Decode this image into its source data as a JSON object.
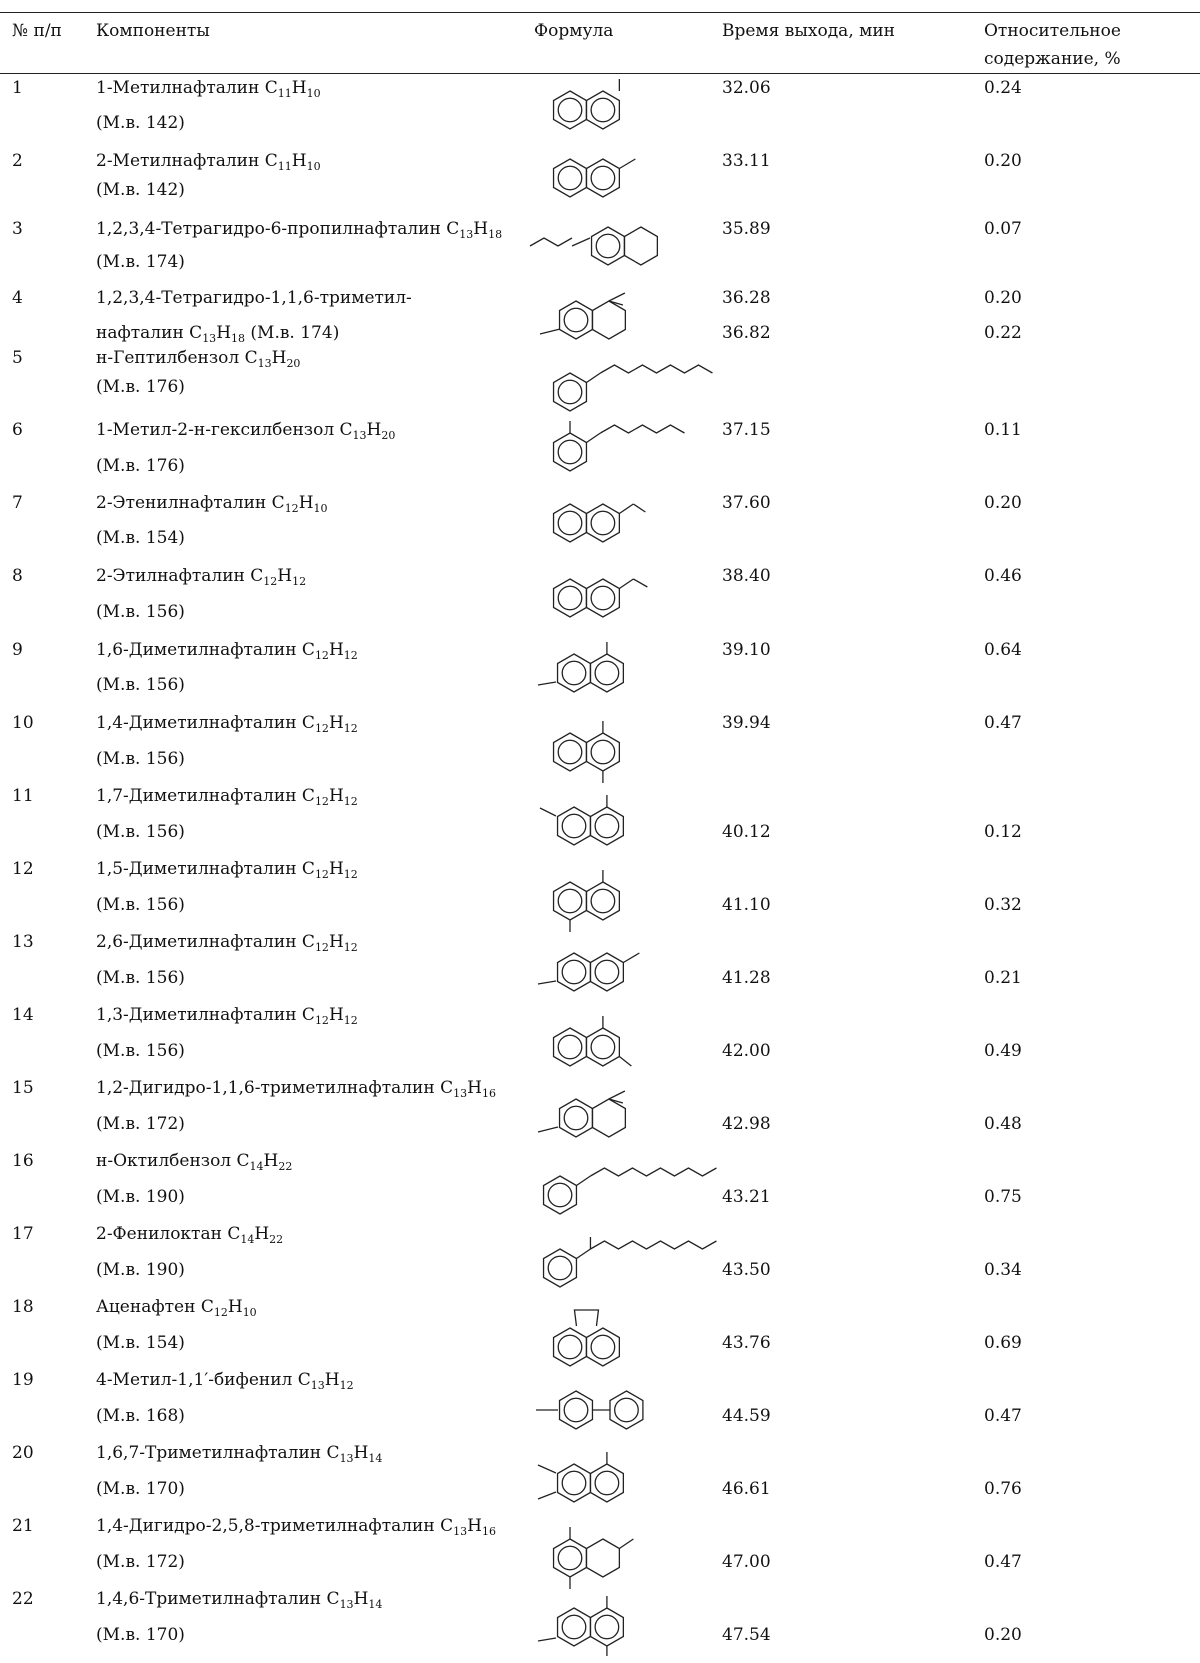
{
  "table": {
    "headers": {
      "num": "№ п/п",
      "component": "Компоненты",
      "formula": "Формула",
      "rt": "Время выхода, мин",
      "rel1": "Относительное",
      "rel2": "содержание, %"
    },
    "rows": [
      {
        "n": "1",
        "name": "1-Метилнафталин C",
        "s1": "11",
        "h": "H",
        "s2": "10",
        "tail": "",
        "mw": "(М.в. 142)",
        "rt": "32.06",
        "pct": "0.24",
        "icon": "1-methylnaphthalene-structure-icon"
      },
      {
        "n": "2",
        "name": "2-Метилнафталин C",
        "s1": "11",
        "h": "H",
        "s2": "10",
        "tail": "",
        "mw": "(М.в. 142)",
        "rt": "33.11",
        "pct": "0.20",
        "icon": "2-methylnaphthalene-structure-icon"
      },
      {
        "n": "3",
        "name": "1,2,3,4-Тетрагидро-6-пропилнафталин C",
        "s1": "13",
        "h": "H",
        "s2": "18",
        "tail": "",
        "mw": "(М.в. 174)",
        "rt": "35.89",
        "pct": "0.07",
        "icon": "propyltetralin-structure-icon"
      },
      {
        "n": "4",
        "name": "1,2,3,4-Тетрагидро-1,1,6-триметил-",
        "s1": "",
        "h": "",
        "s2": "",
        "tail": "",
        "mw": "нафталин C",
        "mw_s1": "13",
        "mw_h": "H",
        "mw_s2": "18",
        "mw_tail": " (М.в. 174)",
        "rt": "36.28",
        "pct": "0.20",
        "icon": "trimethyltetralin-structure-icon"
      },
      {
        "n": "5",
        "name": "н-Гептилбензол C",
        "s1": "13",
        "h": "H",
        "s2": "20",
        "tail": "",
        "mw": "(М.в. 176)",
        "rt": "36.82",
        "pct": "0.22",
        "icon": "heptylbenzene-structure-icon"
      },
      {
        "n": "6",
        "name": "1-Метил-2-н-гексилбензол C",
        "s1": "13",
        "h": "H",
        "s2": "20",
        "tail": "",
        "mw": "(М.в. 176)",
        "rt": "37.15",
        "pct": "0.11",
        "icon": "methylhexylbenzene-structure-icon"
      },
      {
        "n": "7",
        "name": "2-Этенилнафталин C",
        "s1": "12",
        "h": "H",
        "s2": "10",
        "tail": "",
        "mw": "(М.в. 154)",
        "rt": "37.60",
        "pct": "0.20",
        "icon": "vinylnaphthalene-structure-icon"
      },
      {
        "n": "8",
        "name": "2-Этилнафталин C",
        "s1": "12",
        "h": "H",
        "s2": "12",
        "tail": "",
        "mw": "(М.в. 156)",
        "rt": "38.40",
        "pct": "0.46",
        "icon": "ethylnaphthalene-structure-icon"
      },
      {
        "n": "9",
        "name": "1,6-Диметилнафталин C",
        "s1": "12",
        "h": "H",
        "s2": "12",
        "tail": "",
        "mw": "(М.в. 156)",
        "rt": "39.10",
        "pct": "0.64",
        "icon": "16-dimethylnaphthalene-structure-icon"
      },
      {
        "n": "10",
        "name": "1,4-Диметилнафталин C",
        "s1": "12",
        "h": "H",
        "s2": "12",
        "tail": "",
        "mw": "(М.в. 156)",
        "rt": "39.94",
        "pct": "0.47",
        "icon": "14-dimethylnaphthalene-structure-icon"
      },
      {
        "n": "11",
        "name": "1,7-Диметилнафталин C",
        "s1": "12",
        "h": "H",
        "s2": "12",
        "tail": "",
        "mw": "(М.в. 156)",
        "rt": "40.12",
        "pct": "0.12",
        "icon": "17-dimethylnaphthalene-structure-icon"
      },
      {
        "n": "12",
        "name": "1,5-Диметилнафталин C",
        "s1": "12",
        "h": "H",
        "s2": "12",
        "tail": "",
        "mw": "(М.в. 156)",
        "rt": "41.10",
        "pct": "0.32",
        "icon": "15-dimethylnaphthalene-structure-icon"
      },
      {
        "n": "13",
        "name": "2,6-Диметилнафталин C",
        "s1": "12",
        "h": "H",
        "s2": "12",
        "tail": "",
        "mw": "(М.в. 156)",
        "rt": "41.28",
        "pct": "0.21",
        "icon": "26-dimethylnaphthalene-structure-icon"
      },
      {
        "n": "14",
        "name": "1,3-Диметилнафталин C",
        "s1": "12",
        "h": "H",
        "s2": "12",
        "tail": "",
        "mw": "(М.в. 156)",
        "rt": "42.00",
        "pct": "0.49",
        "icon": "13-dimethylnaphthalene-structure-icon"
      },
      {
        "n": "15",
        "name": "1,2-Дигидро-1,1,6-триметилнафталин C",
        "s1": "13",
        "h": "H",
        "s2": "16",
        "tail": "",
        "mw": "(М.в. 172)",
        "rt": "42.98",
        "pct": "0.48",
        "icon": "dihydrotrimethylnaphthalene-structure-icon"
      },
      {
        "n": "16",
        "name": "н-Октилбензол C",
        "s1": "14",
        "h": "H",
        "s2": "22",
        "tail": "",
        "mw": "(М.в. 190)",
        "rt": "43.21",
        "pct": "0.75",
        "icon": "octylbenzene-structure-icon"
      },
      {
        "n": "17",
        "name": "2-Фенилоктан C",
        "s1": "14",
        "h": "H",
        "s2": "22",
        "tail": "",
        "mw": "(М.в. 190)",
        "rt": "43.50",
        "pct": "0.34",
        "icon": "2-phenyloctane-structure-icon"
      },
      {
        "n": "18",
        "name": "Аценафтен C",
        "s1": "12",
        "h": "H",
        "s2": "10",
        "tail": "",
        "mw": "(М.в. 154)",
        "rt": "43.76",
        "pct": "0.69",
        "icon": "acenaphthene-structure-icon"
      },
      {
        "n": "19",
        "name": "4-Метил-1,1′-бифенил C",
        "s1": "13",
        "h": "H",
        "s2": "12",
        "tail": "",
        "mw": "(М.в. 168)",
        "rt": "44.59",
        "pct": "0.47",
        "icon": "methylbiphenyl-structure-icon"
      },
      {
        "n": "20",
        "name": "1,6,7-Триметилнафталин C",
        "s1": "13",
        "h": "H",
        "s2": "14",
        "tail": "",
        "mw": "(М.в. 170)",
        "rt": "46.61",
        "pct": "0.76",
        "icon": "167-trimethylnaphthalene-structure-icon"
      },
      {
        "n": "21",
        "name": "1,4-Дигидро-2,5,8-триметилнафталин C",
        "s1": "13",
        "h": "H",
        "s2": "16",
        "tail": "",
        "mw": "(М.в. 172)",
        "rt": "47.00",
        "pct": "0.47",
        "icon": "dihydro-258-trimethylnaphthalene-structure-icon"
      },
      {
        "n": "22",
        "name": "1,4,6-Триметилнафталин C",
        "s1": "13",
        "h": "H",
        "s2": "14",
        "tail": "",
        "mw": "(М.в. 170)",
        "rt": "47.54",
        "pct": "0.20",
        "icon": "146-trimethylnaphthalene-structure-icon"
      }
    ]
  }
}
